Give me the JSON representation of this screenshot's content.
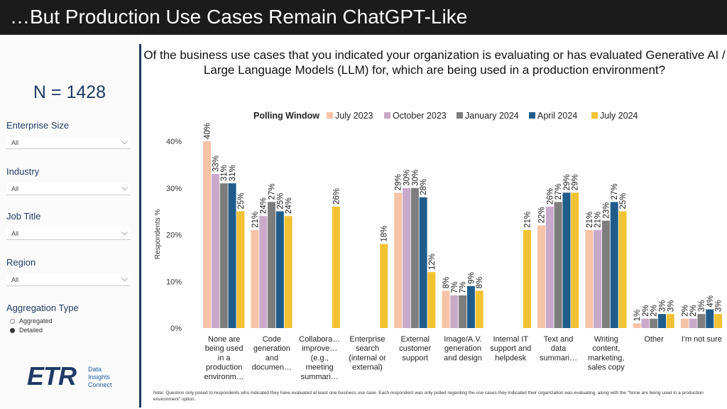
{
  "slide_title": "…But Production Use Cases Remain ChatGPT-Like",
  "sidebar": {
    "n_label": "N = 1428",
    "filters": [
      {
        "label": "Enterprise Size",
        "value": "All"
      },
      {
        "label": "Industry",
        "value": "All"
      },
      {
        "label": "Job Title",
        "value": "All"
      },
      {
        "label": "Region",
        "value": "All"
      }
    ],
    "aggregation": {
      "label": "Aggregation Type",
      "options": [
        "Aggregated",
        "Detailed"
      ],
      "selected": "Detailed"
    },
    "logo": {
      "letters": "ETR",
      "lines": [
        "Data",
        "Insights",
        "Connect"
      ]
    }
  },
  "question": "Of the business use cases that you indicated your organization is evaluating or has evaluated Generative AI / Large Language Models (LLM) for, which are being used in a production environment?",
  "footnote": "Note: Question only posed to respondents who indicated they have evaluated at least one business use case. Each respondent was only polled regarding the use cases they indicated their organization was evaluating, along with the \"None are being used in a production environment\" option.",
  "colors": {
    "July 2023": "#f6c3a6",
    "October 2023": "#c9a9c9",
    "January 2024": "#7d7d7d",
    "April 2024": "#1f5c8c",
    "July 2024": "#f2c233",
    "axis_text": "#333333",
    "title_bar": "#1b1b1b",
    "accent": "#1f3a66"
  },
  "chart_data": {
    "type": "bar",
    "legend_title": "Polling Window",
    "legend_position": "top",
    "ylabel": "Respondents %",
    "ylim": [
      0,
      40
    ],
    "yticks": [
      "0%",
      "10%",
      "20%",
      "30%",
      "40%"
    ],
    "grid": false,
    "categories": [
      [
        "None are",
        "being used",
        "in a",
        "production",
        "environm…"
      ],
      [
        "Code",
        "generation",
        "and",
        "documen…"
      ],
      [
        "Collabora…",
        "improve…",
        "(e.g.,",
        "meeting",
        "summari…"
      ],
      [
        "Enterprise",
        "search",
        "(internal or",
        "external)"
      ],
      [
        "External",
        "customer",
        "support"
      ],
      [
        "Image/A.V.",
        "generation",
        "and design"
      ],
      [
        "Internal IT",
        "support and",
        "helpdesk"
      ],
      [
        "Text and",
        "data",
        "summari…"
      ],
      [
        "Writing",
        "content,",
        "marketing,",
        "sales copy"
      ],
      [
        "Other"
      ],
      [
        "I'm not sure"
      ]
    ],
    "series": [
      {
        "name": "July 2023",
        "values": [
          40,
          21,
          null,
          null,
          29,
          8,
          null,
          22,
          21,
          1,
          2
        ]
      },
      {
        "name": "October 2023",
        "values": [
          33,
          24,
          null,
          null,
          30,
          7,
          null,
          26,
          21,
          2,
          2
        ]
      },
      {
        "name": "January 2024",
        "values": [
          31,
          27,
          null,
          null,
          30,
          7,
          null,
          27,
          23,
          2,
          3
        ]
      },
      {
        "name": "April 2024",
        "values": [
          31,
          25,
          null,
          null,
          28,
          9,
          null,
          29,
          27,
          3,
          4
        ]
      },
      {
        "name": "July 2024",
        "values": [
          25,
          24,
          26,
          18,
          12,
          8,
          21,
          29,
          25,
          3,
          3
        ]
      }
    ]
  }
}
